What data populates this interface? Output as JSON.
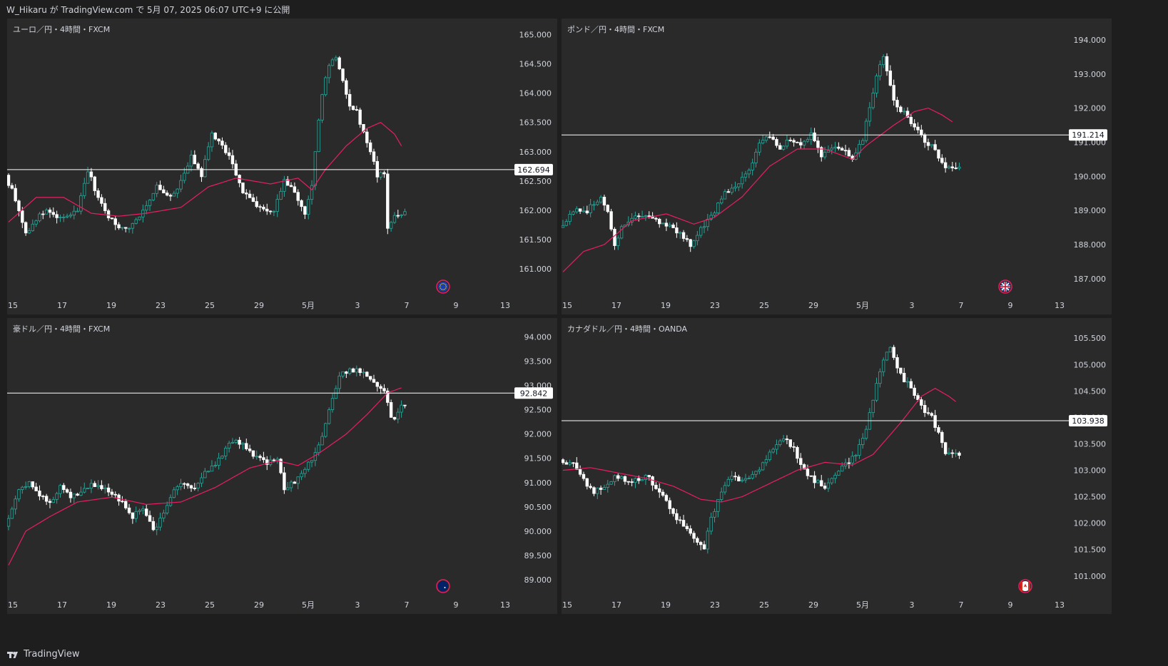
{
  "header": {
    "text": "W_Hikaru が TradingView.com で 5月 07, 2025 06:07 UTC+9 に公開"
  },
  "footer": {
    "brand": "TradingView",
    "logo_icon": "tradingview-logo-icon"
  },
  "colors": {
    "up": "#26a69a",
    "down": "#ffffff",
    "ma": "#e91e63",
    "line": "#ffffff",
    "axis_text": "#d1d4dc"
  },
  "chart_data": [
    {
      "type": "candlestick",
      "title": "ユーロ／円・4時間・FXCM",
      "flag_icon": "eu-flag-icon",
      "x_ticks": [
        "15",
        "17",
        "19",
        "23",
        "25",
        "29",
        "5月",
        "3",
        "7",
        "9",
        "13"
      ],
      "y_ticks": [
        "165.000",
        "164.500",
        "164.000",
        "163.500",
        "163.000",
        "162.500",
        "162.000",
        "161.500",
        "161.000"
      ],
      "ylim": [
        160.6,
        165.2
      ],
      "horizontal_line": {
        "value": 162.694,
        "label": "162.694"
      },
      "anchors": [
        [
          0,
          162.6
        ],
        [
          3,
          162.2
        ],
        [
          6,
          161.6
        ],
        [
          9,
          161.85
        ],
        [
          12,
          162.0
        ],
        [
          15,
          161.85
        ],
        [
          18,
          161.9
        ],
        [
          21,
          162.0
        ],
        [
          24,
          162.7
        ],
        [
          27,
          162.2
        ],
        [
          30,
          161.9
        ],
        [
          33,
          161.7
        ],
        [
          36,
          161.7
        ],
        [
          40,
          162.0
        ],
        [
          44,
          162.4
        ],
        [
          48,
          162.2
        ],
        [
          51,
          162.5
        ],
        [
          54,
          162.9
        ],
        [
          57,
          162.6
        ],
        [
          60,
          163.3
        ],
        [
          63,
          163.1
        ],
        [
          66,
          162.8
        ],
        [
          69,
          162.3
        ],
        [
          72,
          162.15
        ],
        [
          75,
          162.0
        ],
        [
          78,
          162.0
        ],
        [
          81,
          162.5
        ],
        [
          84,
          162.3
        ],
        [
          87,
          161.95
        ],
        [
          89,
          162.4
        ],
        [
          90,
          163.0
        ],
        [
          92,
          164.0
        ],
        [
          94,
          164.5
        ],
        [
          96,
          164.6
        ],
        [
          98,
          164.2
        ],
        [
          100,
          163.8
        ],
        [
          102,
          163.7
        ],
        [
          104,
          163.3
        ],
        [
          106,
          163.0
        ],
        [
          108,
          162.6
        ],
        [
          110,
          162.6
        ],
        [
          111,
          161.7
        ],
        [
          113,
          161.9
        ],
        [
          115,
          161.95
        ]
      ],
      "ma_anchors": [
        [
          0,
          161.8
        ],
        [
          8,
          162.22
        ],
        [
          16,
          162.22
        ],
        [
          24,
          161.95
        ],
        [
          32,
          161.9
        ],
        [
          40,
          161.95
        ],
        [
          50,
          162.05
        ],
        [
          58,
          162.4
        ],
        [
          66,
          162.55
        ],
        [
          76,
          162.45
        ],
        [
          84,
          162.55
        ],
        [
          88,
          162.35
        ],
        [
          92,
          162.7
        ],
        [
          98,
          163.1
        ],
        [
          104,
          163.4
        ],
        [
          108,
          163.5
        ],
        [
          112,
          163.3
        ],
        [
          114,
          163.1
        ]
      ]
    },
    {
      "type": "candlestick",
      "title": "ポンド／円・4時間・FXCM",
      "flag_icon": "uk-flag-icon",
      "x_ticks": [
        "15",
        "17",
        "19",
        "23",
        "25",
        "29",
        "5月",
        "3",
        "7",
        "9",
        "13"
      ],
      "y_ticks": [
        "194.000",
        "193.000",
        "192.000",
        "191.000",
        "190.000",
        "189.000",
        "188.000",
        "187.000"
      ],
      "ylim": [
        186.6,
        194.5
      ],
      "horizontal_line": {
        "value": 191.214,
        "label": "191.214"
      },
      "anchors": [
        [
          0,
          188.5
        ],
        [
          4,
          189.0
        ],
        [
          8,
          189.0
        ],
        [
          12,
          189.4
        ],
        [
          14,
          188.9
        ],
        [
          16,
          188.0
        ],
        [
          18,
          188.5
        ],
        [
          22,
          188.9
        ],
        [
          26,
          188.9
        ],
        [
          30,
          188.6
        ],
        [
          34,
          188.4
        ],
        [
          38,
          188.0
        ],
        [
          42,
          188.6
        ],
        [
          45,
          189.0
        ],
        [
          48,
          189.5
        ],
        [
          52,
          189.8
        ],
        [
          55,
          190.2
        ],
        [
          58,
          191.0
        ],
        [
          61,
          191.2
        ],
        [
          64,
          190.8
        ],
        [
          67,
          191.1
        ],
        [
          70,
          190.9
        ],
        [
          73,
          191.2
        ],
        [
          76,
          190.6
        ],
        [
          79,
          190.9
        ],
        [
          82,
          190.8
        ],
        [
          85,
          190.5
        ],
        [
          88,
          191.1
        ],
        [
          90,
          192.0
        ],
        [
          92,
          193.0
        ],
        [
          94,
          193.5
        ],
        [
          96,
          192.6
        ],
        [
          98,
          192.0
        ],
        [
          100,
          191.9
        ],
        [
          102,
          191.5
        ],
        [
          104,
          191.3
        ],
        [
          106,
          191.0
        ],
        [
          108,
          190.9
        ],
        [
          110,
          190.6
        ],
        [
          112,
          190.3
        ]
      ],
      "ma_anchors": [
        [
          0,
          187.2
        ],
        [
          6,
          187.8
        ],
        [
          12,
          188.0
        ],
        [
          20,
          188.7
        ],
        [
          30,
          188.9
        ],
        [
          38,
          188.6
        ],
        [
          44,
          188.8
        ],
        [
          52,
          189.4
        ],
        [
          60,
          190.3
        ],
        [
          68,
          190.8
        ],
        [
          76,
          190.8
        ],
        [
          84,
          190.5
        ],
        [
          88,
          190.9
        ],
        [
          96,
          191.5
        ],
        [
          102,
          191.9
        ],
        [
          106,
          192.0
        ],
        [
          110,
          191.8
        ],
        [
          113,
          191.6
        ]
      ]
    },
    {
      "type": "candlestick",
      "title": "豪ドル／円・4時間・FXCM",
      "flag_icon": "australia-flag-icon",
      "x_ticks": [
        "15",
        "17",
        "19",
        "23",
        "25",
        "29",
        "5月",
        "3",
        "7",
        "9",
        "13"
      ],
      "y_ticks": [
        "94.000",
        "93.500",
        "93.000",
        "92.500",
        "92.000",
        "91.500",
        "91.000",
        "90.500",
        "90.000",
        "89.500",
        "89.000"
      ],
      "ylim": [
        88.75,
        94.3
      ],
      "horizontal_line": {
        "value": 92.842,
        "label": "92.842"
      },
      "anchors": [
        [
          0,
          90.1
        ],
        [
          4,
          90.9
        ],
        [
          7,
          91.0
        ],
        [
          10,
          90.7
        ],
        [
          13,
          90.6
        ],
        [
          16,
          90.9
        ],
        [
          19,
          90.7
        ],
        [
          22,
          90.8
        ],
        [
          25,
          91.0
        ],
        [
          28,
          90.9
        ],
        [
          31,
          90.8
        ],
        [
          34,
          90.6
        ],
        [
          37,
          90.3
        ],
        [
          40,
          90.5
        ],
        [
          43,
          90.0
        ],
        [
          46,
          90.4
        ],
        [
          49,
          90.8
        ],
        [
          52,
          91.0
        ],
        [
          55,
          90.9
        ],
        [
          58,
          91.2
        ],
        [
          61,
          91.4
        ],
        [
          64,
          91.7
        ],
        [
          67,
          91.9
        ],
        [
          70,
          91.7
        ],
        [
          73,
          91.5
        ],
        [
          76,
          91.4
        ],
        [
          79,
          91.5
        ],
        [
          81,
          90.9
        ],
        [
          84,
          91.0
        ],
        [
          87,
          91.3
        ],
        [
          90,
          91.6
        ],
        [
          93,
          92.2
        ],
        [
          95,
          92.7
        ],
        [
          97,
          93.2
        ],
        [
          99,
          93.3
        ],
        [
          102,
          93.3
        ],
        [
          105,
          93.2
        ],
        [
          108,
          93.0
        ],
        [
          110,
          92.9
        ],
        [
          112,
          92.3
        ],
        [
          114,
          92.4
        ],
        [
          115,
          92.55
        ]
      ],
      "ma_anchors": [
        [
          0,
          89.3
        ],
        [
          5,
          90.0
        ],
        [
          12,
          90.3
        ],
        [
          20,
          90.6
        ],
        [
          30,
          90.7
        ],
        [
          40,
          90.55
        ],
        [
          50,
          90.6
        ],
        [
          60,
          90.9
        ],
        [
          70,
          91.3
        ],
        [
          78,
          91.45
        ],
        [
          84,
          91.35
        ],
        [
          90,
          91.6
        ],
        [
          98,
          92.0
        ],
        [
          104,
          92.4
        ],
        [
          110,
          92.85
        ],
        [
          114,
          92.95
        ]
      ]
    },
    {
      "type": "candlestick",
      "title": "カナダドル／円・4時間・OANDA",
      "flag_icon": "canada-flag-icon",
      "x_ticks": [
        "15",
        "17",
        "19",
        "23",
        "25",
        "29",
        "5月",
        "3",
        "7",
        "9",
        "13"
      ],
      "y_ticks": [
        "105.500",
        "105.000",
        "104.500",
        "104.000",
        "103.500",
        "103.000",
        "102.500",
        "102.000",
        "101.500",
        "101.000"
      ],
      "ylim": [
        100.7,
        105.8
      ],
      "horizontal_line": {
        "value": 103.938,
        "label": "103.938"
      },
      "anchors": [
        [
          0,
          103.2
        ],
        [
          4,
          103.1
        ],
        [
          7,
          102.8
        ],
        [
          10,
          102.6
        ],
        [
          13,
          102.7
        ],
        [
          16,
          102.9
        ],
        [
          19,
          102.8
        ],
        [
          22,
          102.8
        ],
        [
          25,
          102.9
        ],
        [
          28,
          102.7
        ],
        [
          31,
          102.4
        ],
        [
          34,
          102.1
        ],
        [
          37,
          101.9
        ],
        [
          40,
          101.6
        ],
        [
          42,
          101.5
        ],
        [
          44,
          102.1
        ],
        [
          47,
          102.6
        ],
        [
          50,
          102.9
        ],
        [
          53,
          102.8
        ],
        [
          56,
          102.9
        ],
        [
          59,
          103.1
        ],
        [
          62,
          103.4
        ],
        [
          65,
          103.6
        ],
        [
          68,
          103.4
        ],
        [
          71,
          103.0
        ],
        [
          74,
          102.8
        ],
        [
          77,
          102.7
        ],
        [
          80,
          102.9
        ],
        [
          83,
          103.1
        ],
        [
          86,
          103.3
        ],
        [
          89,
          103.8
        ],
        [
          92,
          104.6
        ],
        [
          94,
          105.1
        ],
        [
          96,
          105.3
        ],
        [
          98,
          104.9
        ],
        [
          100,
          104.7
        ],
        [
          102,
          104.6
        ],
        [
          104,
          104.3
        ],
        [
          106,
          104.1
        ],
        [
          108,
          104.0
        ],
        [
          110,
          103.7
        ],
        [
          112,
          103.3
        ],
        [
          114,
          103.3
        ]
      ],
      "ma_anchors": [
        [
          0,
          103.0
        ],
        [
          8,
          103.05
        ],
        [
          16,
          102.95
        ],
        [
          24,
          102.85
        ],
        [
          32,
          102.7
        ],
        [
          40,
          102.45
        ],
        [
          46,
          102.4
        ],
        [
          52,
          102.5
        ],
        [
          60,
          102.75
        ],
        [
          68,
          103.0
        ],
        [
          76,
          103.15
        ],
        [
          84,
          103.1
        ],
        [
          90,
          103.3
        ],
        [
          98,
          103.9
        ],
        [
          104,
          104.4
        ],
        [
          108,
          104.55
        ],
        [
          112,
          104.4
        ],
        [
          114,
          104.3
        ]
      ]
    }
  ]
}
